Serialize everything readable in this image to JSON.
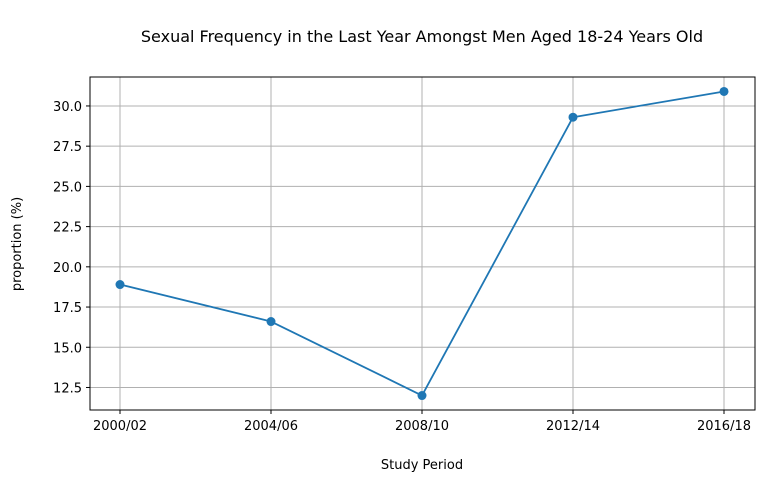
{
  "chart_data": {
    "type": "line",
    "title": "Sexual Frequency in the Last Year Amongst Men Aged 18-24 Years Old",
    "xlabel": "Study Period",
    "ylabel": "proportion (%)",
    "categories": [
      "2000/02",
      "2004/06",
      "2008/10",
      "2012/14",
      "2016/18"
    ],
    "series": [
      {
        "values": [
          18.9,
          16.6,
          12.0,
          29.3,
          30.9
        ],
        "color": "#1f77b4"
      }
    ],
    "ylim": [
      11.1,
      31.8
    ],
    "yticks": [
      "12.5",
      "15.0",
      "17.5",
      "20.0",
      "22.5",
      "25.0",
      "27.5",
      "30.0"
    ],
    "grid": true,
    "marker": "circle"
  }
}
